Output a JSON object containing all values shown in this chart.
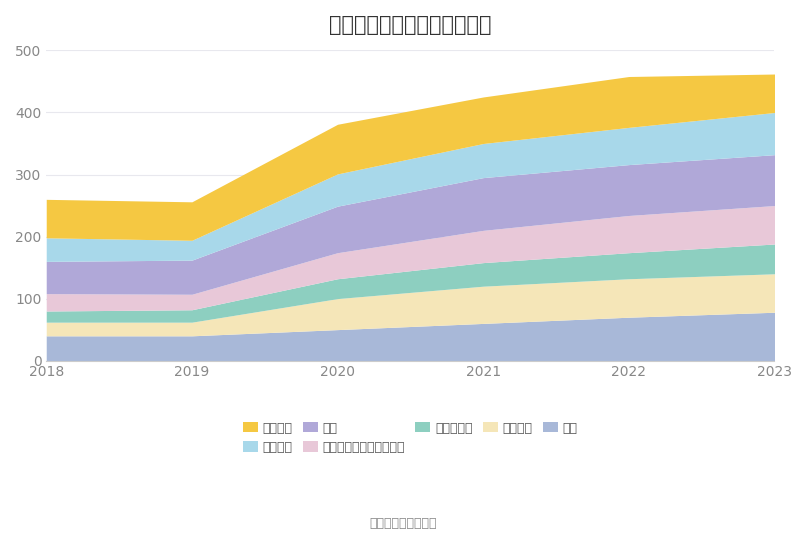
{
  "title": "历年主要资产堆积图（亿元）",
  "source_text": "数据来源：恒生聚源",
  "years": [
    2018,
    2019,
    2020,
    2021,
    2022,
    2023
  ],
  "series_bottom_to_top": [
    {
      "name": "其它",
      "color": "#A8B8D8",
      "values": [
        40,
        40,
        50,
        60,
        70,
        78
      ]
    },
    {
      "name": "固定资产",
      "color": "#F5E6B8",
      "values": [
        22,
        22,
        50,
        60,
        62,
        62
      ]
    },
    {
      "name": "长期应收款",
      "color": "#8DCFC0",
      "values": [
        18,
        20,
        32,
        38,
        42,
        48
      ]
    },
    {
      "name": "一年内到期的非流动资产",
      "color": "#E8C8D8",
      "values": [
        28,
        25,
        42,
        52,
        60,
        62
      ]
    },
    {
      "name": "存货",
      "color": "#B0A8D8",
      "values": [
        52,
        55,
        75,
        85,
        82,
        82
      ]
    },
    {
      "name": "应收账款",
      "color": "#A8D8EA",
      "values": [
        38,
        32,
        52,
        55,
        60,
        68
      ]
    },
    {
      "name": "货币资金",
      "color": "#F5C842",
      "values": [
        62,
        62,
        80,
        75,
        82,
        62
      ]
    }
  ],
  "legend_order": [
    "货币资金",
    "应收账款",
    "存货",
    "一年内到期的非流动资产",
    "长期应收款",
    "固定资产",
    "其它"
  ],
  "ylim": [
    0,
    500
  ],
  "yticks": [
    0,
    100,
    200,
    300,
    400,
    500
  ],
  "bg_color": "#ffffff",
  "grid_color": "#e8e8ee",
  "title_fontsize": 15,
  "tick_fontsize": 10,
  "legend_fontsize": 9,
  "source_fontsize": 9
}
